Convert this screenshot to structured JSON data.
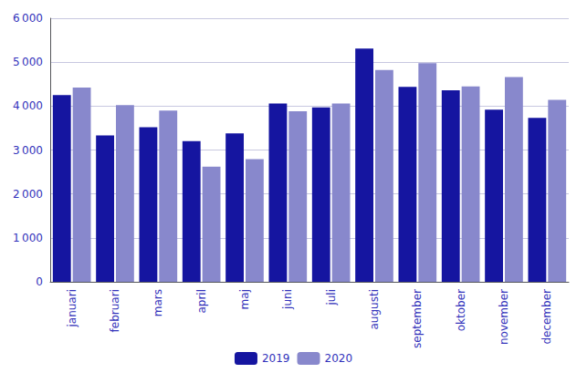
{
  "chart_data": {
    "type": "bar",
    "categories": [
      "januari",
      "februari",
      "mars",
      "april",
      "maj",
      "juni",
      "juli",
      "augusti",
      "september",
      "oktober",
      "november",
      "december"
    ],
    "series": [
      {
        "name": "2019",
        "color": "#1515a0",
        "values": [
          4250,
          3330,
          3520,
          3200,
          3380,
          4060,
          3970,
          5310,
          4440,
          4360,
          3920,
          3730
        ]
      },
      {
        "name": "2020",
        "color": "#8888cc",
        "values": [
          4420,
          4020,
          3900,
          2620,
          2790,
          3880,
          4060,
          4820,
          4980,
          4450,
          4660,
          4140
        ]
      }
    ],
    "ylim": [
      0,
      6000
    ],
    "yticks": [
      0,
      {
        "value": 1000,
        "label": "1 000"
      },
      {
        "value": 2000,
        "label": "2 000"
      },
      {
        "value": 3000,
        "label": "3 000"
      },
      {
        "value": 4000,
        "label": "4 000"
      },
      {
        "value": 5000,
        "label": "5 000"
      },
      {
        "value": 6000,
        "label": "6 000"
      }
    ],
    "grid": true,
    "legend": "bottom"
  }
}
